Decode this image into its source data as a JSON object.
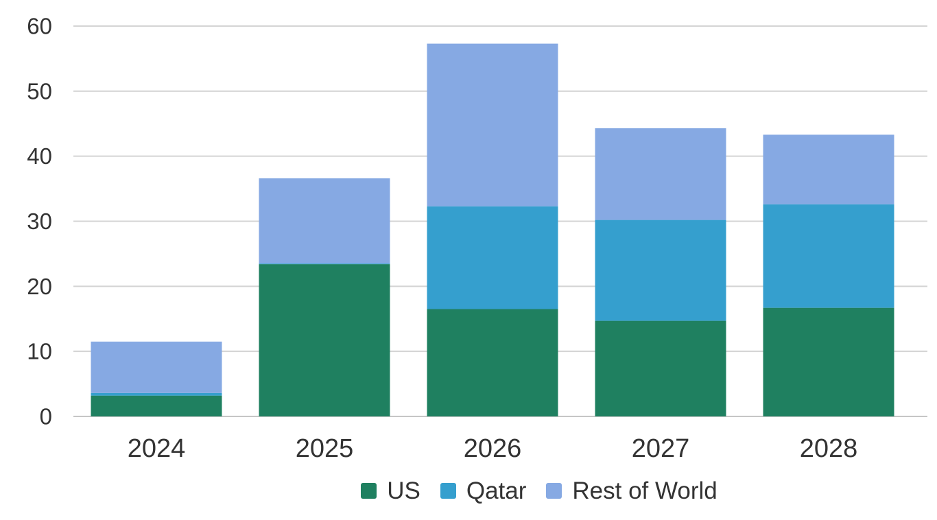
{
  "chart_data": {
    "type": "bar",
    "stacked": true,
    "categories": [
      "2024",
      "2025",
      "2026",
      "2027",
      "2028"
    ],
    "series": [
      {
        "name": "US",
        "color": "#1f8060",
        "values": [
          3.2,
          23.4,
          16.5,
          14.7,
          16.7
        ]
      },
      {
        "name": "Qatar",
        "color": "#359fce",
        "values": [
          0.4,
          0.1,
          15.8,
          15.5,
          15.9
        ]
      },
      {
        "name": "Rest of World",
        "color": "#86a9e3",
        "values": [
          7.9,
          13.1,
          25.0,
          14.1,
          10.7
        ]
      }
    ],
    "totals": [
      11.5,
      36.6,
      57.3,
      44.3,
      43.3
    ],
    "ylim": [
      0,
      60
    ],
    "yticks": [
      0,
      10,
      20,
      30,
      40,
      50,
      60
    ],
    "grid": true,
    "legend_position": "bottom",
    "colors": {
      "gridline": "#d4d4d4",
      "baseline": "#c6c6c6",
      "text": "#333333",
      "background": "#ffffff"
    }
  }
}
